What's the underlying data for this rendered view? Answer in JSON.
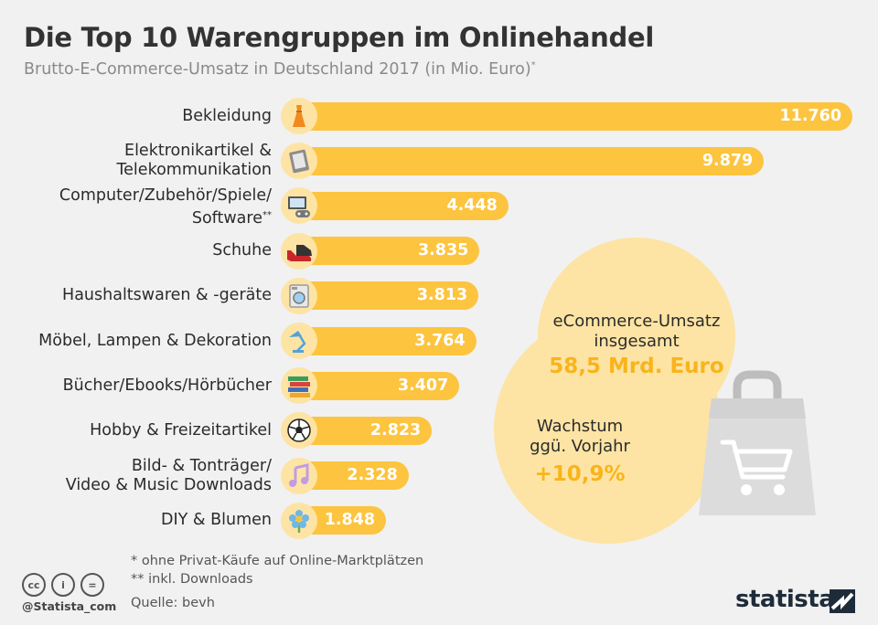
{
  "header": {
    "title": "Die Top 10 Warengruppen im Onlinehandel",
    "subtitle": "Brutto-E-Commerce-Umsatz  in Deutschland 2017 (in Mio. Euro)",
    "subtitle_mark": "*"
  },
  "chart_data": {
    "type": "bar",
    "orientation": "horizontal",
    "categories": [
      [
        "Bekleidung"
      ],
      [
        "Elektronikartikel &",
        "Telekommunikation"
      ],
      [
        "Computer/Zubehör/Spiele/",
        "Software"
      ],
      [
        "Schuhe"
      ],
      [
        "Haushaltswaren & -geräte"
      ],
      [
        "Möbel, Lampen & Dekoration"
      ],
      [
        "Bücher/Ebooks/Hörbücher"
      ],
      [
        "Hobby & Freizeitartikel"
      ],
      [
        "Bild- & Tonträger/",
        "Video & Music Downloads"
      ],
      [
        "DIY & Blumen"
      ]
    ],
    "category_marks": [
      "",
      "",
      "**",
      "",
      "",
      "",
      "",
      "",
      "",
      ""
    ],
    "values": [
      11760,
      9879,
      4448,
      3835,
      3813,
      3764,
      3407,
      2823,
      2328,
      1848
    ],
    "value_labels": [
      "11.760",
      "9.879",
      "4.448",
      "3.835",
      "3.813",
      "3.764",
      "3.407",
      "2.823",
      "2.328",
      "1.848"
    ],
    "icons": [
      "dress-icon",
      "tablet-icon",
      "gaming-icon",
      "shoe-icon",
      "washing-machine-icon",
      "lamp-icon",
      "books-icon",
      "soccer-ball-icon",
      "music-note-icon",
      "flower-icon"
    ],
    "bar_color": "#fcc43f",
    "icon_bg_color": "#fde4a4"
  },
  "callout": {
    "total_label_line1": "eCommerce-Umsatz",
    "total_label_line2": "insgesamt",
    "total_value": "58,5 Mrd. Euro",
    "growth_label_line1": "Wachstum",
    "growth_label_line2": "ggü. Vorjahr",
    "growth_value": "+10,9%",
    "bubble_color": "#fde4a4",
    "highlight_color": "#f9b41b",
    "bag_icon": "shopping-bag-cart-icon"
  },
  "footer": {
    "note1": "*   ohne Privat-Käufe auf Online-Marktplätzen",
    "note2": "** inkl. Downloads",
    "source": "Quelle: bevh",
    "handle": "@Statista_com",
    "brand": "statista",
    "license_icons": [
      "cc-icon",
      "by-icon",
      "nd-icon"
    ],
    "license_glyphs": [
      "cc",
      "i",
      "="
    ]
  }
}
